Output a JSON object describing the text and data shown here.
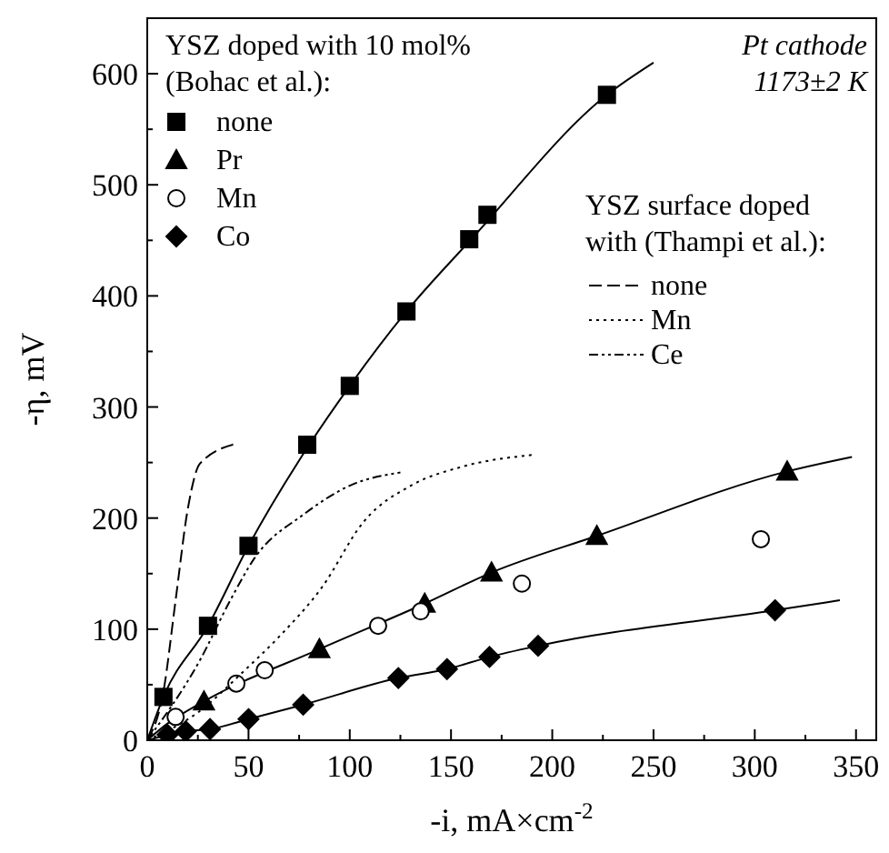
{
  "chart_data": {
    "type": "scatter",
    "xlabel": "-i, mA×cm$^{-2}$",
    "ylabel": "-η, mV",
    "legend_title": "YSZ doped with 10 mol%\n(Bohac et al.):",
    "legend": "top left",
    "annotations": [
      "Pt cathode\n1173±2 K",
      "YSZ surface doped\nwith (Thampi et al.):"
    ],
    "xlim": [
      0,
      360
    ],
    "ylim": [
      0,
      650
    ],
    "xticks": [
      0,
      {
        "value": 25,
        "label": null
      },
      50,
      {
        "value": 75,
        "label": null
      },
      100,
      {
        "value": 125,
        "label": null
      },
      150,
      {
        "value": 175,
        "label": null
      },
      200,
      {
        "value": 225,
        "label": null
      },
      250,
      {
        "value": 275,
        "label": null
      },
      300,
      {
        "value": 325,
        "label": null
      },
      350
    ],
    "yticks": [
      0,
      {
        "value": 50,
        "label": null
      },
      100,
      {
        "value": 150,
        "label": null
      },
      200,
      {
        "value": 250,
        "label": null
      },
      300,
      {
        "value": 350,
        "label": null
      },
      400,
      {
        "value": 450,
        "label": null
      },
      500,
      {
        "value": 550,
        "label": null
      },
      600
    ],
    "grid": false,
    "series": [
      {
        "type": "line",
        "line_style": "solid",
        "color": "#000000",
        "x": [
          0,
          8,
          30,
          50,
          80,
          100,
          128,
          160,
          227,
          250
        ],
        "values": [
          0,
          39,
          103,
          175,
          266,
          319,
          386,
          451,
          581,
          610
        ]
      },
      {
        "type": "line",
        "line_style": "solid",
        "color": "#000000",
        "x": [
          0,
          10,
          28,
          85,
          137,
          170,
          222,
          316,
          348
        ],
        "values": [
          0,
          15,
          35,
          82,
          123,
          151,
          184,
          242,
          255
        ]
      },
      {
        "type": "line",
        "line_style": "solid",
        "color": "#000000",
        "x": [
          0,
          19,
          31,
          50,
          77,
          124,
          148,
          169,
          193,
          310,
          342
        ],
        "values": [
          0,
          8,
          10,
          19,
          32,
          56,
          64,
          75,
          85,
          117,
          126
        ]
      },
      {
        "name": "none",
        "marker": "square",
        "color": "#000000",
        "x": [
          8,
          30,
          50,
          79,
          100,
          128,
          159,
          168,
          227
        ],
        "values": [
          39,
          103,
          175,
          266,
          319,
          386,
          451,
          473,
          581
        ]
      },
      {
        "name": "Pr",
        "marker": "triangle",
        "color": "#000000",
        "x": [
          28,
          85,
          137,
          170,
          222,
          316
        ],
        "values": [
          35,
          82,
          123,
          151,
          184,
          242
        ]
      },
      {
        "name": "Mn",
        "marker": "circle",
        "color": "#ffffff",
        "x": [
          14,
          44,
          58,
          114,
          135,
          185,
          303
        ],
        "values": [
          21,
          51,
          63,
          103,
          116,
          141,
          181
        ]
      },
      {
        "name": "Co",
        "marker": "diamond",
        "color": "#000000",
        "x": [
          10,
          19,
          31,
          50,
          77,
          124,
          148,
          169,
          193,
          310
        ],
        "values": [
          5,
          8,
          10,
          19,
          32,
          56,
          64,
          75,
          85,
          117
        ]
      },
      {
        "name": "none",
        "type": "line",
        "line_style": "dashed",
        "color": "#000000",
        "x": [
          0,
          8,
          14,
          20,
          26,
          44
        ],
        "values": [
          0,
          44,
          126,
          208,
          249,
          267
        ]
      },
      {
        "name": "Mn",
        "type": "line",
        "line_style": "dotted",
        "color": "#000000",
        "x": [
          0,
          25,
          47,
          65,
          86,
          107,
          131,
          155,
          191
        ],
        "values": [
          0,
          25,
          61,
          93,
          137,
          197,
          230,
          246,
          257
        ]
      },
      {
        "name": "Ce",
        "type": "line",
        "line_style": "dashdot",
        "color": "#000000",
        "x": [
          0,
          26,
          41,
          53,
          77,
          101,
          125
        ],
        "values": [
          0,
          72,
          126,
          164,
          203,
          230,
          241
        ]
      }
    ]
  }
}
